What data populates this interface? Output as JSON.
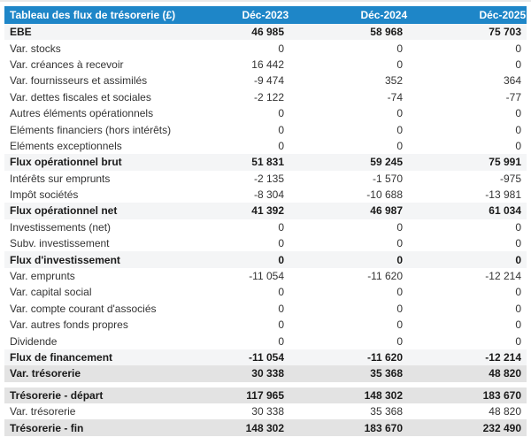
{
  "chart_data": {
    "type": "table",
    "title": "Tableau des flux de trésorerie (£)",
    "columns": [
      "Déc-2023",
      "Déc-2024",
      "Déc-2025"
    ],
    "colors": {
      "header_background": "#1e86c8",
      "header_text": "#ffffff",
      "subtotal_row_background": "#f4f5f6",
      "total_row_background": "#e3e3e3",
      "body_text": "#333333"
    },
    "rows": [
      {
        "label": "EBE",
        "values": [
          "46 985",
          "58 968",
          "75 703"
        ],
        "style": "subtotal"
      },
      {
        "label": "Var. stocks",
        "values": [
          "0",
          "0",
          "0"
        ],
        "style": "normal"
      },
      {
        "label": "Var. créances à recevoir",
        "values": [
          "16 442",
          "0",
          "0"
        ],
        "style": "normal"
      },
      {
        "label": "Var. fournisseurs et assimilés",
        "values": [
          "-9 474",
          "352",
          "364"
        ],
        "style": "normal"
      },
      {
        "label": "Var. dettes fiscales et sociales",
        "values": [
          "-2 122",
          "-74",
          "-77"
        ],
        "style": "normal"
      },
      {
        "label": "Autres éléments opérationnels",
        "values": [
          "0",
          "0",
          "0"
        ],
        "style": "normal"
      },
      {
        "label": "Eléments financiers (hors intérêts)",
        "values": [
          "0",
          "0",
          "0"
        ],
        "style": "normal"
      },
      {
        "label": "Eléments exceptionnels",
        "values": [
          "0",
          "0",
          "0"
        ],
        "style": "normal"
      },
      {
        "label": "Flux opérationnel brut",
        "values": [
          "51 831",
          "59 245",
          "75 991"
        ],
        "style": "subtotal"
      },
      {
        "label": "Intérêts sur emprunts",
        "values": [
          "-2 135",
          "-1 570",
          "-975"
        ],
        "style": "normal"
      },
      {
        "label": "Impôt sociétés",
        "values": [
          "-8 304",
          "-10 688",
          "-13 981"
        ],
        "style": "normal"
      },
      {
        "label": "Flux opérationnel net",
        "values": [
          "41 392",
          "46 987",
          "61 034"
        ],
        "style": "subtotal"
      },
      {
        "label": "Investissements (net)",
        "values": [
          "0",
          "0",
          "0"
        ],
        "style": "normal"
      },
      {
        "label": "Subv. investissement",
        "values": [
          "0",
          "0",
          "0"
        ],
        "style": "normal"
      },
      {
        "label": "Flux d'investissement",
        "values": [
          "0",
          "0",
          "0"
        ],
        "style": "subtotal"
      },
      {
        "label": "Var. emprunts",
        "values": [
          "-11 054",
          "-11 620",
          "-12 214"
        ],
        "style": "normal"
      },
      {
        "label": "Var. capital social",
        "values": [
          "0",
          "0",
          "0"
        ],
        "style": "normal"
      },
      {
        "label": "Var. compte courant d'associés",
        "values": [
          "0",
          "0",
          "0"
        ],
        "style": "normal"
      },
      {
        "label": "Var. autres fonds propres",
        "values": [
          "0",
          "0",
          "0"
        ],
        "style": "normal"
      },
      {
        "label": "Dividende",
        "values": [
          "0",
          "0",
          "0"
        ],
        "style": "normal"
      },
      {
        "label": "Flux de financement",
        "values": [
          "-11 054",
          "-11 620",
          "-12 214"
        ],
        "style": "subtotal"
      },
      {
        "label": "Var. trésorerie",
        "values": [
          "30 338",
          "35 368",
          "48 820"
        ],
        "style": "total"
      },
      {
        "label": "",
        "values": [],
        "style": "spacer"
      },
      {
        "label": "Trésorerie - départ",
        "values": [
          "117 965",
          "148 302",
          "183 670"
        ],
        "style": "total"
      },
      {
        "label": "Var. trésorerie",
        "values": [
          "30 338",
          "35 368",
          "48 820"
        ],
        "style": "normal"
      },
      {
        "label": "Trésorerie - fin",
        "values": [
          "148 302",
          "183 670",
          "232 490"
        ],
        "style": "total"
      }
    ]
  }
}
